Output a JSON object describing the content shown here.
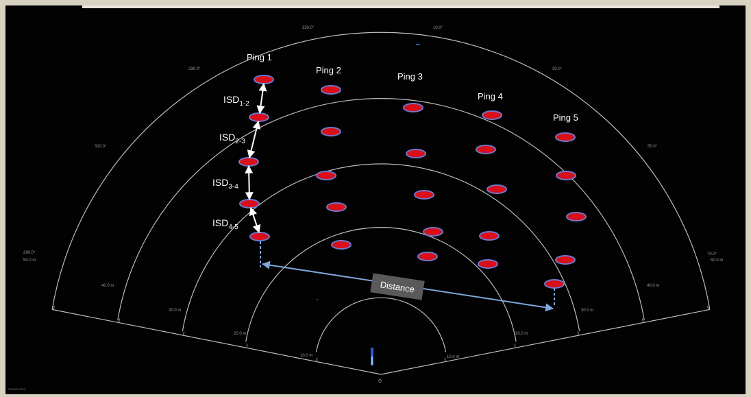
{
  "sonar": {
    "colors": {
      "background": "#020202",
      "frame": "#d8d2c2",
      "ring": "#bdbdbd",
      "tick": "#9a9a9a",
      "target_fill": "#d90f1a",
      "target_edge": "#6f77c9",
      "isd_arrow": "#ffffff",
      "distance_arrow": "#7ea6dc",
      "distance_box": "#5a5a5a",
      "text": "#ffffff",
      "echo": "#2a6fff"
    },
    "bearing_labels": [
      "290.0°",
      "310.0°",
      "330.0°",
      "350.0°",
      "10.0°",
      "30.0°",
      "50.0°",
      "70.0°"
    ],
    "left_range_labels": [
      "10.0 m",
      "20.0 m",
      "30.0 m",
      "40.0 m",
      "50.0 m"
    ],
    "right_range_labels": [
      "10.0 m",
      "20.0 m",
      "30.0 m",
      "40.0 m",
      "50.0 m"
    ],
    "corner_caption": "SONAR VIEW",
    "ping_labels": [
      "Ping 1",
      "Ping 2",
      "Ping 3",
      "Ping 4",
      "Ping 5"
    ],
    "isd_labels": [
      {
        "main": "ISD",
        "sub": "1-2"
      },
      {
        "main": "ISD",
        "sub": "2-3"
      },
      {
        "main": "ISD",
        "sub": "3-4"
      },
      {
        "main": "ISD",
        "sub": "4-5"
      }
    ],
    "distance_label": "Distance",
    "target_count_per_ping": [
      5,
      5,
      6,
      6,
      6
    ]
  }
}
